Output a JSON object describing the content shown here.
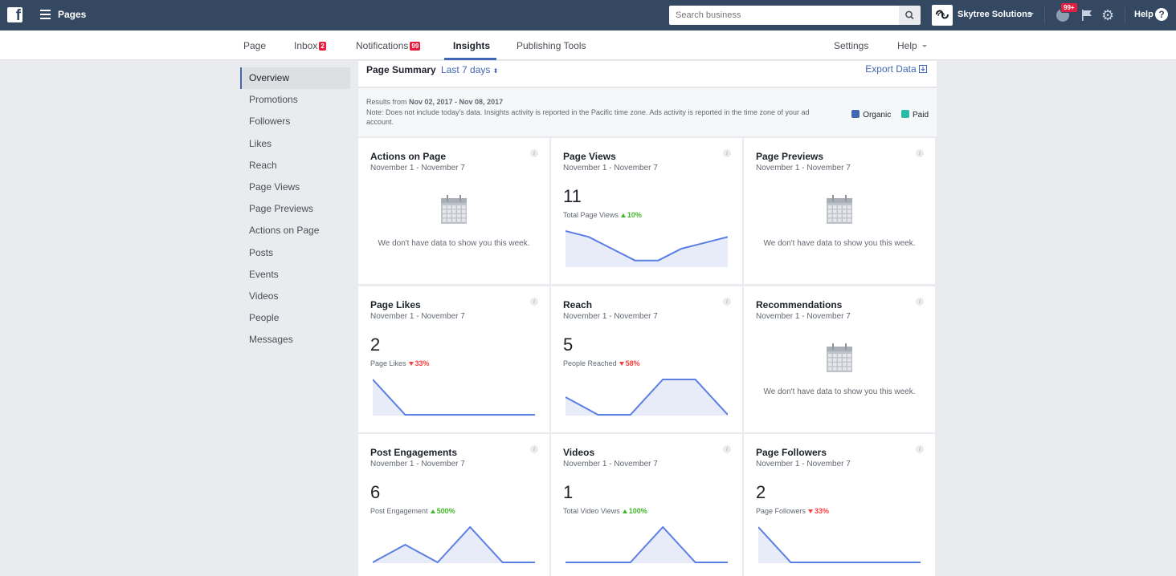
{
  "topbar": {
    "pages_label": "Pages",
    "search_placeholder": "Search business",
    "business_name": "Skytree Solutions",
    "notif_badge": "99+",
    "help_label": "Help"
  },
  "tabs": {
    "page": "Page",
    "inbox": "Inbox",
    "inbox_badge": "2",
    "notifications": "Notifications",
    "notifications_badge": "99",
    "insights": "Insights",
    "publishing_tools": "Publishing Tools",
    "settings": "Settings",
    "help": "Help"
  },
  "sidebar": {
    "items": [
      {
        "label": "Overview"
      },
      {
        "label": "Promotions"
      },
      {
        "label": "Followers"
      },
      {
        "label": "Likes"
      },
      {
        "label": "Reach"
      },
      {
        "label": "Page Views"
      },
      {
        "label": "Page Previews"
      },
      {
        "label": "Actions on Page"
      },
      {
        "label": "Posts"
      },
      {
        "label": "Events"
      },
      {
        "label": "Videos"
      },
      {
        "label": "People"
      },
      {
        "label": "Messages"
      }
    ]
  },
  "summary": {
    "title": "Page Summary",
    "range": "Last 7 days",
    "export": "Export Data",
    "results_prefix": "Results from ",
    "results_range": "Nov 02, 2017 - Nov 08, 2017",
    "note": "Note: Does not include today's data. Insights activity is reported in the Pacific time zone. Ads activity is reported in the time zone of your ad account.",
    "legend": [
      {
        "label": "Organic",
        "color": "#4267b2"
      },
      {
        "label": "Paid",
        "color": "#2abba7"
      }
    ]
  },
  "colors": {
    "accent": "#4267b2",
    "line": "#5b7ee5",
    "fill": "#e7ecf8",
    "up": "#42b72a",
    "down": "#fa3e3e"
  },
  "cards": [
    {
      "title": "Actions on Page",
      "date": "November 1 - November 7",
      "nodata": "We don't have data to show you this week."
    },
    {
      "title": "Page Views",
      "date": "November 1 - November 7",
      "value": "11",
      "label": "Total Page Views",
      "delta": "10%",
      "dir": "up",
      "spark": [
        6,
        5,
        3,
        1,
        1,
        3,
        4,
        5
      ]
    },
    {
      "title": "Page Previews",
      "date": "November 1 - November 7",
      "nodata": "We don't have data to show you this week."
    },
    {
      "title": "Page Likes",
      "date": "November 1 - November 7",
      "value": "2",
      "label": "Page Likes",
      "delta": "33%",
      "dir": "down",
      "spark": [
        1,
        0,
        0,
        0,
        0,
        0
      ]
    },
    {
      "title": "Reach",
      "date": "November 1 - November 7",
      "value": "5",
      "label": "People Reached",
      "delta": "58%",
      "dir": "down",
      "spark": [
        2,
        0,
        0,
        4,
        4,
        0
      ]
    },
    {
      "title": "Recommendations",
      "date": "November 1 - November 7",
      "nodata": "We don't have data to show you this week."
    },
    {
      "title": "Post Engagements",
      "date": "November 1 - November 7",
      "value": "6",
      "label": "Post Engagement",
      "delta": "500%",
      "dir": "up",
      "spark": [
        0,
        2,
        0,
        4,
        0,
        0
      ]
    },
    {
      "title": "Videos",
      "date": "November 1 - November 7",
      "value": "1",
      "label": "Total Video Views",
      "delta": "100%",
      "dir": "up",
      "spark": [
        0,
        0,
        0,
        1,
        0,
        0
      ]
    },
    {
      "title": "Page Followers",
      "date": "November 1 - November 7",
      "value": "2",
      "label": "Page Followers",
      "delta": "33%",
      "dir": "down",
      "spark": [
        1,
        0,
        0,
        0,
        0,
        0
      ]
    }
  ]
}
